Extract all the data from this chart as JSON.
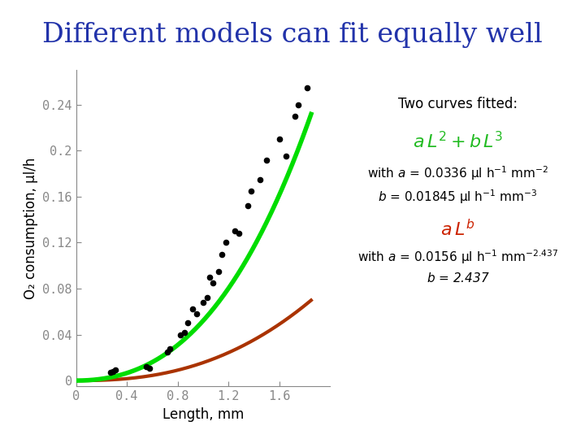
{
  "title": "Different models can fit equally well",
  "title_color": "#2233AA",
  "title_fontsize": 24,
  "xlabel": "Length, mm",
  "ylabel": "O₂ consumption, μl/h",
  "xlim": [
    0,
    2.0
  ],
  "ylim": [
    -0.005,
    0.27
  ],
  "xticks": [
    0,
    0.4,
    0.8,
    1.2,
    1.6
  ],
  "xtick_labels": [
    "0",
    "0.4",
    "0.8",
    "1.2",
    "1.6"
  ],
  "yticks": [
    0,
    0.04,
    0.08,
    0.12,
    0.16,
    0.2,
    0.24
  ],
  "ytick_labels": [
    "0",
    "0.04",
    "0.08",
    "0.12",
    "0.16",
    "0.2",
    "0.24"
  ],
  "background_color": "#FFFFFF",
  "data_points": [
    [
      0.27,
      0.007
    ],
    [
      0.29,
      0.008
    ],
    [
      0.31,
      0.009
    ],
    [
      0.55,
      0.012
    ],
    [
      0.58,
      0.011
    ],
    [
      0.72,
      0.025
    ],
    [
      0.74,
      0.028
    ],
    [
      0.82,
      0.04
    ],
    [
      0.85,
      0.042
    ],
    [
      0.88,
      0.05
    ],
    [
      0.92,
      0.062
    ],
    [
      0.95,
      0.058
    ],
    [
      1.0,
      0.068
    ],
    [
      1.03,
      0.072
    ],
    [
      1.05,
      0.09
    ],
    [
      1.08,
      0.085
    ],
    [
      1.12,
      0.095
    ],
    [
      1.15,
      0.11
    ],
    [
      1.18,
      0.12
    ],
    [
      1.25,
      0.13
    ],
    [
      1.28,
      0.128
    ],
    [
      1.35,
      0.152
    ],
    [
      1.38,
      0.165
    ],
    [
      1.45,
      0.175
    ],
    [
      1.5,
      0.192
    ],
    [
      1.6,
      0.21
    ],
    [
      1.65,
      0.195
    ],
    [
      1.72,
      0.23
    ],
    [
      1.75,
      0.24
    ],
    [
      1.82,
      0.255
    ]
  ],
  "curve1_color": "#00DD00",
  "curve2_color": "#AA3300",
  "curve_linewidth": 3,
  "a1": 0.0336,
  "b1": 0.01845,
  "a2": 0.0156,
  "b2": 2.437,
  "tick_label_color": "#888888",
  "tick_label_fontsize": 11,
  "axis_color": "#888888"
}
